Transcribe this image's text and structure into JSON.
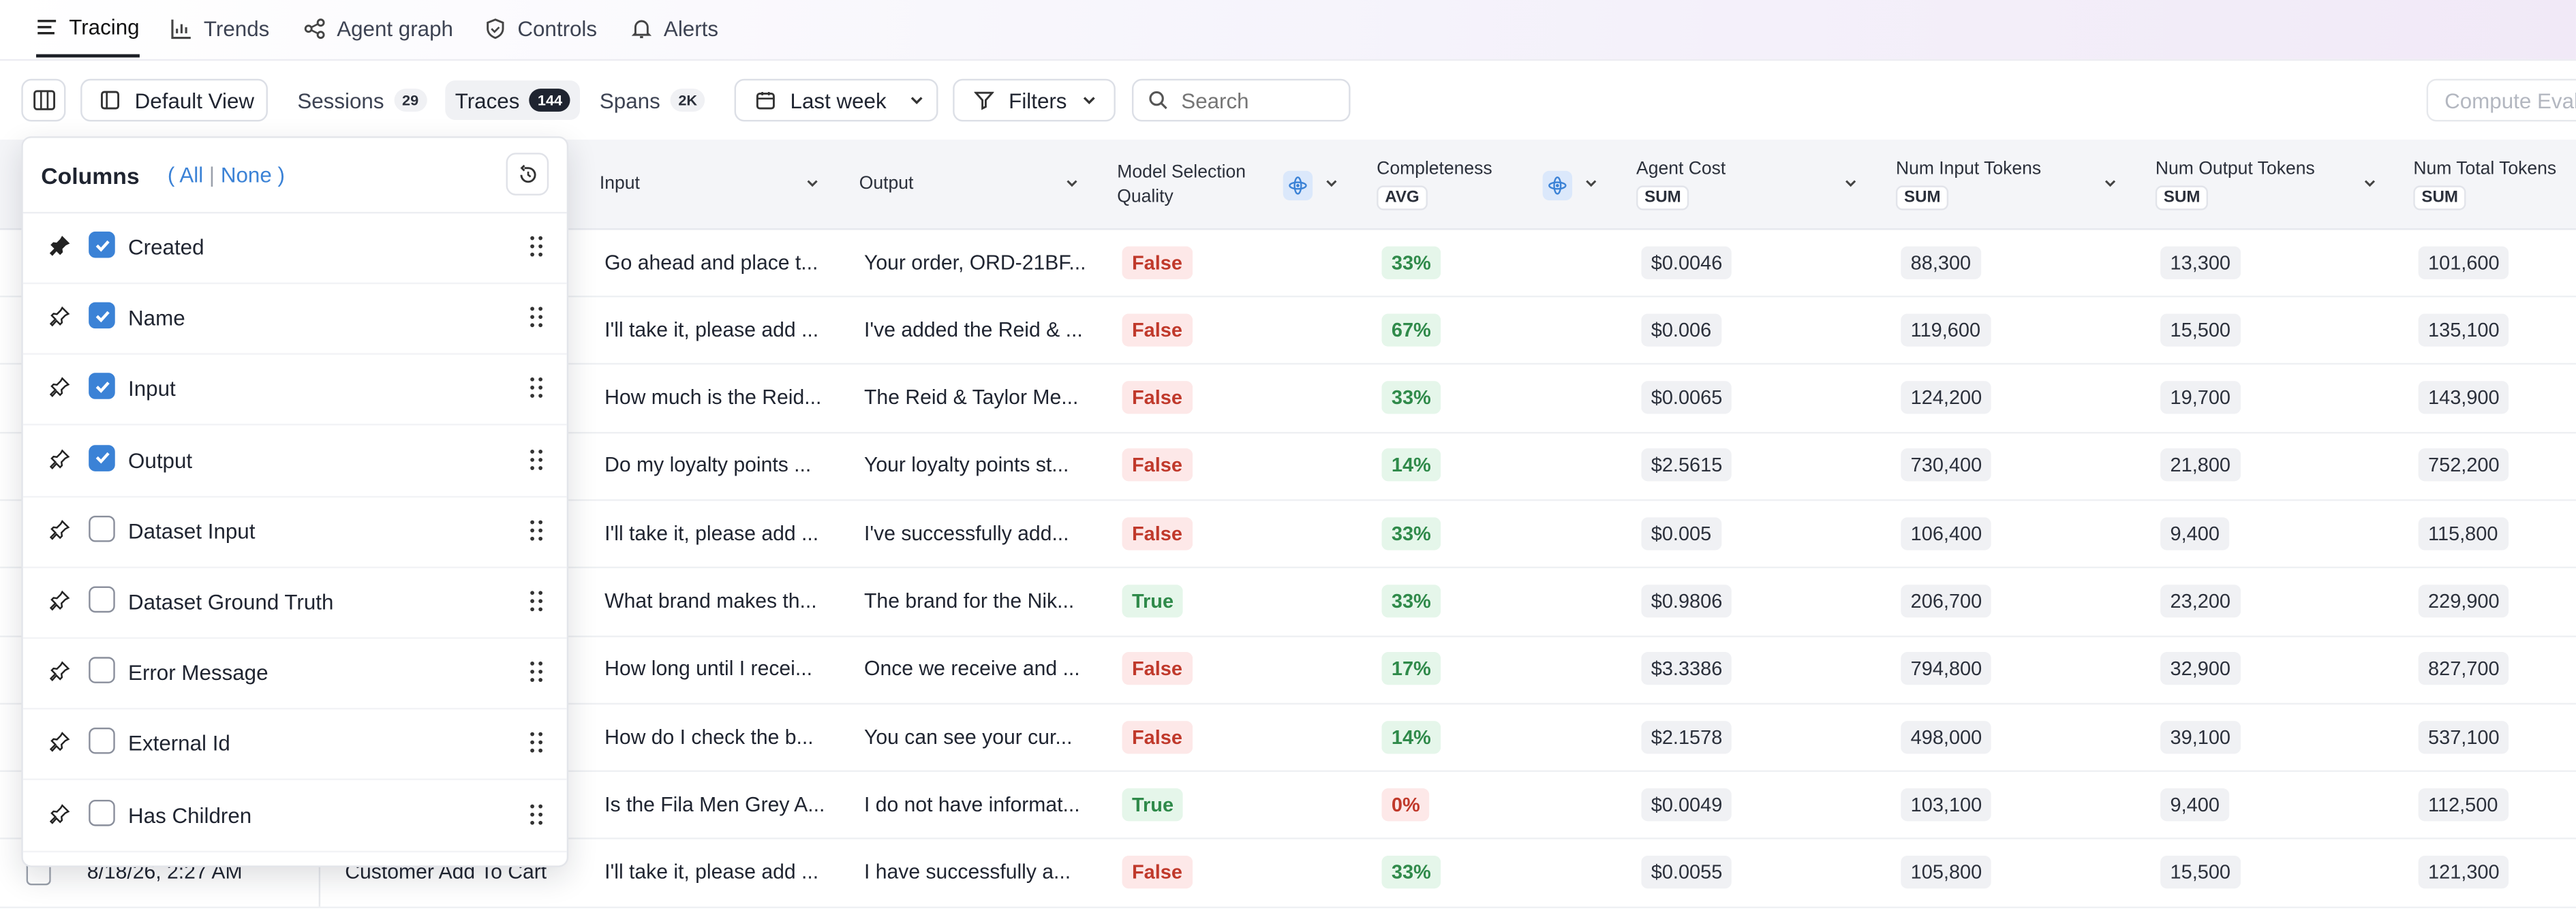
{
  "nav": {
    "items": [
      {
        "label": "Tracing",
        "icon": "list-icon",
        "active": true
      },
      {
        "label": "Trends",
        "icon": "bar-chart-icon",
        "active": false
      },
      {
        "label": "Agent graph",
        "icon": "graph-icon",
        "active": false
      },
      {
        "label": "Controls",
        "icon": "shield-icon",
        "active": false
      },
      {
        "label": "Alerts",
        "icon": "bell-icon",
        "active": false
      }
    ]
  },
  "toolbar": {
    "view_label": "Default View",
    "tabs": [
      {
        "label": "Sessions",
        "count": "29",
        "active": false
      },
      {
        "label": "Traces",
        "count": "144",
        "active": true
      },
      {
        "label": "Spans",
        "count": "2K",
        "active": false
      }
    ],
    "date_range": "Last week",
    "filters_label": "Filters",
    "search_placeholder": "Search",
    "compute_label": "Compute Evalu"
  },
  "columns_panel": {
    "title": "Columns",
    "all": "All",
    "none": "None",
    "items": [
      {
        "label": "Created",
        "checked": true,
        "pinned": true
      },
      {
        "label": "Name",
        "checked": true,
        "pinned": false
      },
      {
        "label": "Input",
        "checked": true,
        "pinned": false
      },
      {
        "label": "Output",
        "checked": true,
        "pinned": false
      },
      {
        "label": "Dataset Input",
        "checked": false,
        "pinned": false
      },
      {
        "label": "Dataset Ground Truth",
        "checked": false,
        "pinned": false
      },
      {
        "label": "Error Message",
        "checked": false,
        "pinned": false
      },
      {
        "label": "External Id",
        "checked": false,
        "pinned": false
      },
      {
        "label": "Has Children",
        "checked": false,
        "pinned": false
      }
    ]
  },
  "table": {
    "headers": {
      "input": "Input",
      "output": "Output",
      "model_sel_1": "Model Selection",
      "model_sel_2": "Quality",
      "completeness": "Completeness",
      "completeness_agg": "AVG",
      "agent_cost": "Agent Cost",
      "agent_cost_agg": "SUM",
      "num_input": "Num Input Tokens",
      "num_input_agg": "SUM",
      "num_output": "Num Output Tokens",
      "num_output_agg": "SUM",
      "num_total": "Num Total Tokens",
      "num_total_agg": "SUM"
    },
    "rows": [
      {
        "input": "Go ahead and place t...",
        "output": "Your order, ORD-21BF...",
        "quality": "False",
        "completeness": "33%",
        "cost": "$0.0046",
        "in": "88,300",
        "out": "13,300",
        "total": "101,600"
      },
      {
        "input": "I'll take it, please add ...",
        "output": "I've added the Reid & ...",
        "quality": "False",
        "completeness": "67%",
        "cost": "$0.006",
        "in": "119,600",
        "out": "15,500",
        "total": "135,100"
      },
      {
        "input": "How much is the Reid...",
        "output": "The Reid & Taylor Me...",
        "quality": "False",
        "completeness": "33%",
        "cost": "$0.0065",
        "in": "124,200",
        "out": "19,700",
        "total": "143,900"
      },
      {
        "input": "Do my loyalty points ...",
        "output": "Your loyalty points st...",
        "quality": "False",
        "completeness": "14%",
        "cost": "$2.5615",
        "in": "730,400",
        "out": "21,800",
        "total": "752,200"
      },
      {
        "input": "I'll take it, please add ...",
        "output": "I've successfully add...",
        "quality": "False",
        "completeness": "33%",
        "cost": "$0.005",
        "in": "106,400",
        "out": "9,400",
        "total": "115,800"
      },
      {
        "input": "What brand makes th...",
        "output": "The brand for the Nik...",
        "quality": "True",
        "completeness": "33%",
        "cost": "$0.9806",
        "in": "206,700",
        "out": "23,200",
        "total": "229,900"
      },
      {
        "input": "How long until I recei...",
        "output": "Once we receive and ...",
        "quality": "False",
        "completeness": "17%",
        "cost": "$3.3386",
        "in": "794,800",
        "out": "32,900",
        "total": "827,700"
      },
      {
        "input": "How do I check the b...",
        "output": "You can see your cur...",
        "quality": "False",
        "completeness": "14%",
        "cost": "$2.1578",
        "in": "498,000",
        "out": "39,100",
        "total": "537,100"
      },
      {
        "input": "Is the Fila Men Grey A...",
        "output": "I do not have informat...",
        "quality": "True",
        "completeness": "0%",
        "cost": "$0.0049",
        "in": "103,100",
        "out": "9,400",
        "total": "112,500"
      },
      {
        "input": "I'll take it, please add ...",
        "output": "I have successfully a...",
        "quality": "False",
        "completeness": "33%",
        "cost": "$0.0055",
        "in": "105,800",
        "out": "15,500",
        "total": "121,300",
        "created": "8/18/26, 2:27 AM",
        "name": "Customer Add To Cart"
      }
    ]
  }
}
